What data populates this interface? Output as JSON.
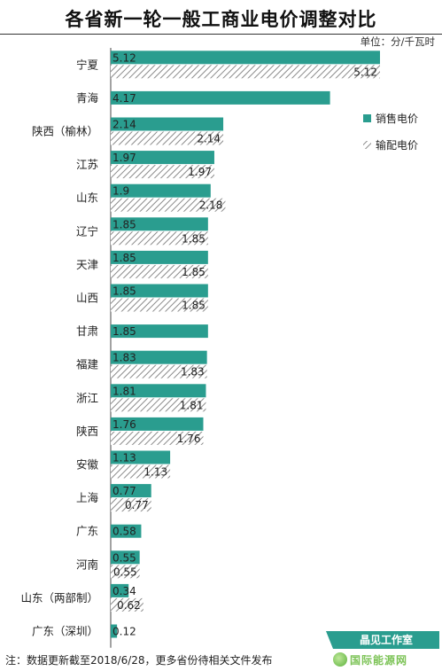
{
  "chart_data": {
    "type": "bar",
    "orientation": "horizontal",
    "title": "各省新一轮一般工商业电价调整对比",
    "unit_note": "单位：分/千瓦时",
    "categories": [
      "宁夏",
      "青海",
      "陕西（榆林）",
      "江苏",
      "山东",
      "辽宁",
      "天津",
      "山西",
      "甘肃",
      "福建",
      "浙江",
      "陕西",
      "安徽",
      "上海",
      "广东",
      "河南",
      "山东（两部制）",
      "广东（深圳）"
    ],
    "series": [
      {
        "name": "销售电价",
        "color": "#2a9d8f",
        "pattern": "solid",
        "values": [
          5.12,
          4.17,
          2.14,
          1.97,
          1.9,
          1.85,
          1.85,
          1.85,
          1.85,
          1.83,
          1.81,
          1.76,
          1.13,
          0.77,
          0.58,
          0.55,
          0.34,
          0.12
        ]
      },
      {
        "name": "输配电价",
        "color": "#9a9a9a",
        "pattern": "hatched",
        "values": [
          5.12,
          null,
          2.14,
          1.97,
          2.18,
          1.85,
          1.85,
          1.85,
          null,
          1.83,
          1.81,
          1.76,
          1.13,
          0.77,
          null,
          0.55,
          0.62,
          null
        ]
      }
    ],
    "labels": {
      "销售电价": [
        "5.12",
        "4.17",
        "2.14",
        "1.97",
        "1.9",
        "1.85",
        "1.85",
        "1.85",
        "1.85",
        "1.83",
        "1.81",
        "1.76",
        "1.13",
        "0.77",
        "0.58",
        "0.55",
        "0.34",
        "0.12"
      ],
      "输配电价": [
        "5.12",
        "",
        "2.14",
        "1.97",
        "2.18",
        "1.85",
        "1.85",
        "1.85",
        "",
        "1.83",
        "1.81",
        "1.76",
        "1.13",
        "0.77",
        "",
        "0.55",
        "0.62",
        ""
      ]
    },
    "xlim": [
      0,
      5.12
    ],
    "grid": false,
    "legend_position": "right"
  },
  "footnote": "注：数据更新截至2018/6/28，更多省份待相关文件发布",
  "branding": {
    "studio": "晶见工作室",
    "watermark": "国际能源网"
  }
}
